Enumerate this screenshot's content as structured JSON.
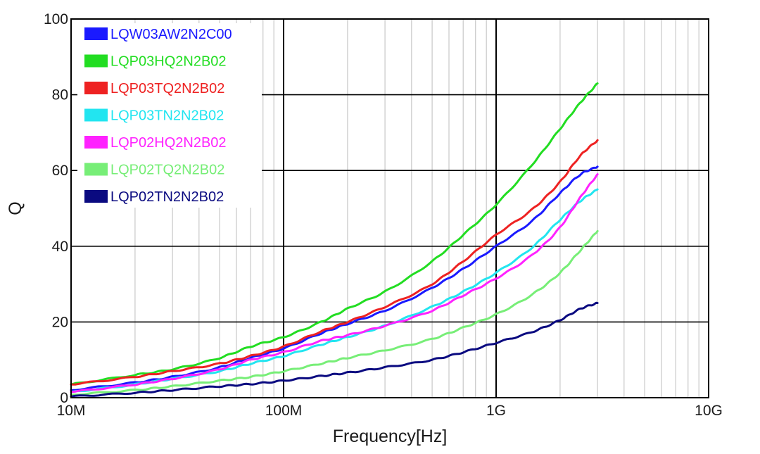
{
  "chart_data": {
    "type": "line",
    "title": "",
    "xlabel": "Frequency[Hz]",
    "ylabel": "Q",
    "xscale": "log",
    "xlim": [
      10000000,
      10000000000
    ],
    "ylim": [
      0,
      100
    ],
    "grid": true,
    "legend_position": "top-left",
    "x_tick_values": [
      10000000,
      100000000,
      1000000000,
      10000000000
    ],
    "x_tick_labels": [
      "10M",
      "100M",
      "1G",
      "10G"
    ],
    "y_ticks": [
      0,
      20,
      40,
      60,
      80,
      100
    ],
    "x": [
      10000000,
      20000000,
      30000000,
      50000000,
      70000000,
      100000000,
      150000000,
      200000000,
      300000000,
      500000000,
      700000000,
      1000000000,
      1500000000,
      2000000000,
      2500000000,
      3000000000
    ],
    "series": [
      {
        "name": "LQW03AW2N2C00",
        "color": "#1a1aff",
        "values": [
          2,
          4,
          5.5,
          8,
          10.5,
          13,
          17,
          19.5,
          23,
          29,
          34,
          40,
          47,
          54,
          59,
          61
        ]
      },
      {
        "name": "LQP03HQ2N2B02",
        "color": "#22dd22",
        "values": [
          3.5,
          6,
          7.5,
          10.5,
          13.5,
          16,
          20,
          23.5,
          28,
          36,
          43,
          51,
          62,
          71,
          78,
          83
        ]
      },
      {
        "name": "LQP03TQ2N2B02",
        "color": "#ee2222",
        "values": [
          3.5,
          5.5,
          7,
          9,
          11,
          13.5,
          17.5,
          20,
          24,
          30,
          36,
          43,
          50,
          57,
          64,
          68
        ]
      },
      {
        "name": "LQP03TN2N2B02",
        "color": "#22e5f0",
        "values": [
          1.5,
          3.5,
          5,
          7,
          9,
          11,
          14,
          16,
          19,
          24,
          28,
          33,
          40,
          47,
          52,
          55
        ]
      },
      {
        "name": "LQP02HQ2N2B02",
        "color": "#ff22ff",
        "values": [
          1.5,
          3.5,
          5,
          7.5,
          10,
          12,
          15,
          16.5,
          19,
          23,
          27,
          31.5,
          38,
          45,
          53,
          59
        ]
      },
      {
        "name": "LQP02TQ2N2B02",
        "color": "#77ee77",
        "values": [
          0.8,
          2,
          3,
          4.5,
          5.5,
          7,
          9,
          10.5,
          12.5,
          15.5,
          18.5,
          22,
          27.5,
          33,
          39,
          44
        ]
      },
      {
        "name": "LQP02TN2N2B02",
        "color": "#0a0a80",
        "values": [
          0.3,
          1.3,
          2,
          3,
          3.6,
          4.5,
          5.7,
          6.6,
          8,
          10,
          12,
          14.5,
          17.5,
          20.5,
          23.5,
          25
        ]
      }
    ]
  }
}
